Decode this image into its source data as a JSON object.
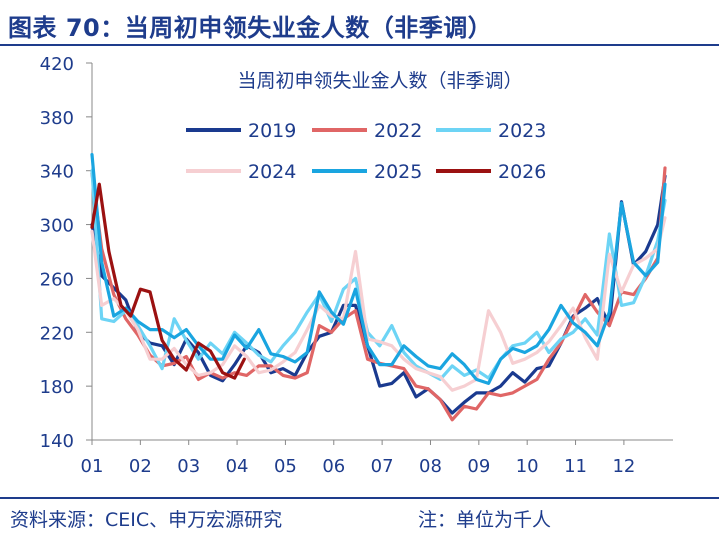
{
  "figure": {
    "title": "图表 70：当周初申领失业金人数（非季调）",
    "source": "资料来源：CEIC、申万宏源研究",
    "note": "注：单位为千人",
    "accent_color": "#1e3c8c"
  },
  "chart_data": {
    "type": "line",
    "title": "当周初申领失业金人数（非季调）",
    "xlabel": "",
    "ylabel": "",
    "x_range": [
      1,
      12.85
    ],
    "x_ticks": [
      "01",
      "02",
      "03",
      "04",
      "05",
      "06",
      "07",
      "08",
      "09",
      "10",
      "11",
      "12"
    ],
    "ylim": [
      140,
      420
    ],
    "y_ticks": [
      140,
      180,
      220,
      260,
      300,
      340,
      380,
      420
    ],
    "grid": false,
    "legend_position": "top-center",
    "series": [
      {
        "name": "2019",
        "color": "#1a3a8f",
        "x": [
          1,
          1.2,
          1.45,
          1.7,
          1.95,
          2.2,
          2.45,
          2.7,
          2.95,
          3.2,
          3.45,
          3.7,
          3.95,
          4.2,
          4.45,
          4.7,
          4.95,
          5.2,
          5.45,
          5.7,
          5.95,
          6.2,
          6.45,
          6.7,
          6.95,
          7.2,
          7.45,
          7.7,
          7.95,
          8.2,
          8.45,
          8.7,
          8.95,
          9.2,
          9.45,
          9.7,
          9.95,
          10.2,
          10.45,
          10.7,
          10.95,
          11.2,
          11.45,
          11.7,
          11.95,
          12.2,
          12.45,
          12.7,
          12.85
        ],
        "y": [
          300,
          262,
          253,
          244,
          220,
          212,
          210,
          196,
          215,
          205,
          188,
          184,
          196,
          210,
          205,
          190,
          193,
          188,
          205,
          217,
          220,
          240,
          240,
          210,
          180,
          182,
          190,
          172,
          178,
          170,
          160,
          168,
          175,
          175,
          180,
          190,
          183,
          193,
          195,
          212,
          232,
          238,
          245,
          225,
          317,
          270,
          280,
          300,
          336
        ]
      },
      {
        "name": "2022",
        "color": "#e06666",
        "x": [
          1,
          1.2,
          1.45,
          1.7,
          1.95,
          2.2,
          2.45,
          2.7,
          2.95,
          3.2,
          3.45,
          3.7,
          3.95,
          4.2,
          4.45,
          4.7,
          4.95,
          5.2,
          5.45,
          5.7,
          5.95,
          6.2,
          6.45,
          6.7,
          6.95,
          7.2,
          7.45,
          7.7,
          7.95,
          8.2,
          8.45,
          8.7,
          8.95,
          9.2,
          9.45,
          9.7,
          9.95,
          10.2,
          10.45,
          10.7,
          10.95,
          11.2,
          11.45,
          11.7,
          11.95,
          12.2,
          12.45,
          12.7,
          12.85
        ],
        "y": [
          338,
          282,
          248,
          230,
          218,
          203,
          195,
          197,
          202,
          185,
          190,
          186,
          190,
          188,
          195,
          195,
          188,
          186,
          190,
          225,
          220,
          230,
          236,
          200,
          197,
          195,
          193,
          180,
          178,
          170,
          155,
          165,
          163,
          175,
          173,
          175,
          180,
          185,
          200,
          212,
          230,
          248,
          235,
          225,
          250,
          248,
          260,
          275,
          342
        ]
      },
      {
        "name": "2023",
        "color": "#6dd4f5",
        "x": [
          1,
          1.2,
          1.45,
          1.7,
          1.95,
          2.2,
          2.45,
          2.7,
          2.95,
          3.2,
          3.45,
          3.7,
          3.95,
          4.2,
          4.45,
          4.7,
          4.95,
          5.2,
          5.45,
          5.7,
          5.95,
          6.2,
          6.45,
          6.7,
          6.95,
          7.2,
          7.45,
          7.7,
          7.95,
          8.2,
          8.45,
          8.7,
          8.95,
          9.2,
          9.45,
          9.7,
          9.95,
          10.2,
          10.45,
          10.7,
          10.95,
          11.2,
          11.45,
          11.7,
          11.95,
          12.2,
          12.45,
          12.7,
          12.85
        ],
        "y": [
          340,
          230,
          228,
          236,
          225,
          210,
          193,
          230,
          214,
          200,
          212,
          204,
          220,
          212,
          203,
          198,
          210,
          220,
          235,
          248,
          228,
          252,
          260,
          220,
          210,
          225,
          205,
          195,
          190,
          185,
          195,
          188,
          192,
          186,
          200,
          210,
          212,
          220,
          205,
          215,
          220,
          230,
          218,
          293,
          240,
          242,
          262,
          288,
          318
        ]
      },
      {
        "name": "2024",
        "color": "#f6cfd2",
        "x": [
          1,
          1.2,
          1.45,
          1.7,
          1.95,
          2.2,
          2.45,
          2.7,
          2.95,
          3.2,
          3.45,
          3.7,
          3.95,
          4.2,
          4.45,
          4.7,
          4.95,
          5.2,
          5.45,
          5.7,
          5.95,
          6.2,
          6.45,
          6.7,
          6.95,
          7.2,
          7.45,
          7.7,
          7.95,
          8.2,
          8.45,
          8.7,
          8.95,
          9.2,
          9.45,
          9.7,
          9.95,
          10.2,
          10.45,
          10.7,
          10.95,
          11.2,
          11.45,
          11.7,
          11.95,
          12.2,
          12.45,
          12.7,
          12.85
        ],
        "y": [
          295,
          240,
          245,
          236,
          222,
          200,
          200,
          208,
          196,
          188,
          190,
          196,
          210,
          202,
          190,
          192,
          198,
          205,
          222,
          240,
          232,
          230,
          280,
          215,
          213,
          210,
          200,
          193,
          190,
          187,
          177,
          180,
          185,
          236,
          220,
          197,
          200,
          205,
          213,
          225,
          238,
          216,
          200,
          278,
          250,
          270,
          275,
          282,
          305
        ]
      },
      {
        "name": "2025",
        "color": "#1aa5e0",
        "x": [
          1,
          1.2,
          1.45,
          1.7,
          1.95,
          2.2,
          2.45,
          2.7,
          2.95,
          3.2,
          3.45,
          3.7,
          3.95,
          4.2,
          4.45,
          4.7,
          4.95,
          5.2,
          5.45,
          5.7,
          5.95,
          6.2,
          6.45,
          6.7,
          6.95,
          7.2,
          7.45,
          7.7,
          7.95,
          8.2,
          8.45,
          8.7,
          8.95,
          9.2,
          9.45,
          9.7,
          9.95,
          10.2,
          10.45,
          10.7,
          10.95,
          11.2,
          11.45,
          11.7,
          11.95,
          12.2,
          12.45,
          12.7,
          12.85
        ],
        "y": [
          352,
          272,
          232,
          238,
          228,
          222,
          222,
          216,
          222,
          210,
          200,
          200,
          218,
          208,
          222,
          204,
          202,
          198,
          205,
          250,
          235,
          226,
          252,
          210,
          196,
          196,
          210,
          202,
          195,
          193,
          204,
          196,
          185,
          182,
          200,
          208,
          205,
          210,
          222,
          240,
          227,
          220,
          210,
          235,
          316,
          272,
          262,
          272,
          330
        ]
      },
      {
        "name": "2026",
        "color": "#9b1111",
        "x": [
          1,
          1.15,
          1.35,
          1.6,
          1.8,
          2,
          2.2,
          2.45,
          2.7,
          2.95,
          3.2,
          3.45,
          3.7,
          3.95,
          4.15
        ],
        "y": [
          298,
          330,
          280,
          240,
          232,
          252,
          250,
          214,
          200,
          192,
          212,
          206,
          190,
          186,
          200
        ]
      }
    ]
  }
}
